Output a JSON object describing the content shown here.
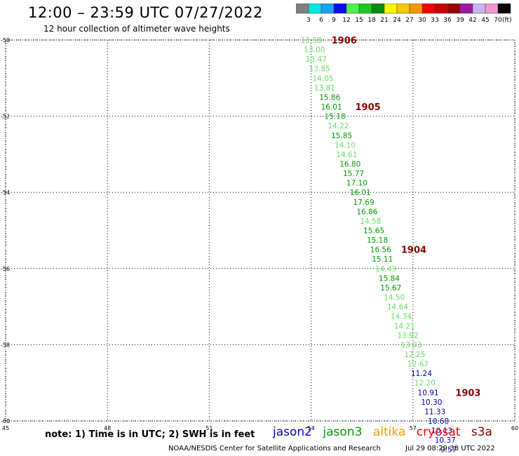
{
  "header": {
    "title": "12:00 – 23:59 UTC 07/27/2022",
    "subtitle": "12 hour collection of altimeter wave heights"
  },
  "colorbar": {
    "labels": [
      "3",
      "6",
      "9",
      "12",
      "15",
      "18",
      "21",
      "24",
      "27",
      "30",
      "33",
      "36",
      "39",
      "42",
      "45",
      "70"
    ],
    "unit": "(ft)",
    "colors": [
      "#808080",
      "#00e5e5",
      "#1aa0f0",
      "#0a0aee",
      "#4cf04c",
      "#1ec81e",
      "#0a8c0a",
      "#f5f500",
      "#f5c800",
      "#f59600",
      "#f00000",
      "#c80000",
      "#960000",
      "#9c1a9c",
      "#c8b4f0",
      "#f096d2",
      "#000000"
    ]
  },
  "map": {
    "lon_min": 45,
    "lon_max": 60,
    "lat_min": -60,
    "lat_max": -50,
    "x_ticks": [
      "45",
      "48",
      "51",
      "54",
      "57",
      "60"
    ],
    "y_ticks": [
      "-50",
      "-52",
      "-54",
      "-56",
      "-58",
      "-60"
    ],
    "gridlines": "dotted"
  },
  "chart_data": {
    "type": "scatter",
    "x_label": "longitude",
    "y_label": "latitude",
    "points": [
      {
        "lon": 54.0,
        "lat": -50.0,
        "swh": "13.38",
        "sat": "jason3"
      },
      {
        "lon": 54.1,
        "lat": -50.25,
        "swh": "13.00",
        "sat": "jason3"
      },
      {
        "lon": 54.15,
        "lat": -50.5,
        "swh": "13.47",
        "sat": "jason3"
      },
      {
        "lon": 54.25,
        "lat": -50.75,
        "swh": "13.85",
        "sat": "jason3"
      },
      {
        "lon": 54.35,
        "lat": -51.0,
        "swh": "14.05",
        "sat": "jason3"
      },
      {
        "lon": 54.4,
        "lat": -51.25,
        "swh": "13.81",
        "sat": "jason3"
      },
      {
        "lon": 54.55,
        "lat": -51.5,
        "swh": "15.86",
        "sat": "jason3"
      },
      {
        "lon": 54.6,
        "lat": -51.75,
        "swh": "16.01",
        "sat": "jason3"
      },
      {
        "lon": 54.7,
        "lat": -52.0,
        "swh": "15.18",
        "sat": "jason3"
      },
      {
        "lon": 54.8,
        "lat": -52.25,
        "swh": "14.22",
        "sat": "jason3"
      },
      {
        "lon": 54.9,
        "lat": -52.5,
        "swh": "15.85",
        "sat": "jason3"
      },
      {
        "lon": 55.0,
        "lat": -52.75,
        "swh": "14.10",
        "sat": "jason3"
      },
      {
        "lon": 55.05,
        "lat": -53.0,
        "swh": "14.61",
        "sat": "jason3"
      },
      {
        "lon": 55.15,
        "lat": -53.25,
        "swh": "16.80",
        "sat": "jason3"
      },
      {
        "lon": 55.25,
        "lat": -53.5,
        "swh": "15.77",
        "sat": "jason3"
      },
      {
        "lon": 55.35,
        "lat": -53.75,
        "swh": "17.10",
        "sat": "jason3"
      },
      {
        "lon": 55.45,
        "lat": -54.0,
        "swh": "16.01",
        "sat": "jason3"
      },
      {
        "lon": 55.55,
        "lat": -54.25,
        "swh": "17.69",
        "sat": "jason3"
      },
      {
        "lon": 55.65,
        "lat": -54.5,
        "swh": "16.86",
        "sat": "jason3"
      },
      {
        "lon": 55.75,
        "lat": -54.75,
        "swh": "14.58",
        "sat": "jason3"
      },
      {
        "lon": 55.85,
        "lat": -55.0,
        "swh": "15.65",
        "sat": "jason3"
      },
      {
        "lon": 55.95,
        "lat": -55.25,
        "swh": "15.18",
        "sat": "jason3"
      },
      {
        "lon": 56.05,
        "lat": -55.5,
        "swh": "16.56",
        "sat": "jason3"
      },
      {
        "lon": 56.1,
        "lat": -55.75,
        "swh": "15.11",
        "sat": "jason3"
      },
      {
        "lon": 56.2,
        "lat": -56.0,
        "swh": "14.43",
        "sat": "jason3"
      },
      {
        "lon": 56.3,
        "lat": -56.25,
        "swh": "15.84",
        "sat": "jason3"
      },
      {
        "lon": 56.35,
        "lat": -56.5,
        "swh": "15.67",
        "sat": "jason3"
      },
      {
        "lon": 56.45,
        "lat": -56.75,
        "swh": "14.50",
        "sat": "jason3"
      },
      {
        "lon": 56.55,
        "lat": -57.0,
        "swh": "14.64",
        "sat": "jason3"
      },
      {
        "lon": 56.65,
        "lat": -57.25,
        "swh": "14.34",
        "sat": "jason3"
      },
      {
        "lon": 56.75,
        "lat": -57.5,
        "swh": "14.21",
        "sat": "jason3"
      },
      {
        "lon": 56.85,
        "lat": -57.75,
        "swh": "13.92",
        "sat": "jason3"
      },
      {
        "lon": 56.95,
        "lat": -58.0,
        "swh": "13.93",
        "sat": "jason3"
      },
      {
        "lon": 57.05,
        "lat": -58.25,
        "swh": "12.25",
        "sat": "jason3"
      },
      {
        "lon": 57.15,
        "lat": -58.5,
        "swh": "12.67",
        "sat": "jason3"
      },
      {
        "lon": 57.25,
        "lat": -58.75,
        "swh": "11.24",
        "sat": "jason2"
      },
      {
        "lon": 57.35,
        "lat": -59.0,
        "swh": "12.20",
        "sat": "jason3"
      },
      {
        "lon": 57.45,
        "lat": -59.25,
        "swh": "10.91",
        "sat": "jason2"
      },
      {
        "lon": 57.55,
        "lat": -59.5,
        "swh": "10.30",
        "sat": "jason2"
      },
      {
        "lon": 57.65,
        "lat": -59.75,
        "swh": "11.33",
        "sat": "jason2"
      },
      {
        "lon": 57.75,
        "lat": -60.0,
        "swh": "10.60",
        "sat": "jason2"
      },
      {
        "lon": 57.85,
        "lat": -60.25,
        "swh": "10.13",
        "sat": "jason2"
      },
      {
        "lon": 57.95,
        "lat": -60.5,
        "swh": "10.37",
        "sat": "jason2"
      },
      {
        "lon": 58.05,
        "lat": -60.75,
        "swh": "9.57",
        "sat": "jason2"
      }
    ],
    "time_labels": [
      {
        "text": "1906",
        "lon": 54.6,
        "lat": -50.0
      },
      {
        "text": "1905",
        "lon": 55.3,
        "lat": -51.75
      },
      {
        "text": "1904",
        "lon": 56.65,
        "lat": -55.5
      },
      {
        "text": "1903",
        "lon": 58.25,
        "lat": -59.25
      }
    ]
  },
  "legend": {
    "note": "note: 1) Time is in UTC; 2) SWH is in feet",
    "satellites": [
      {
        "name": "jason2",
        "color": "#0000cc"
      },
      {
        "name": "jason3",
        "color": "#009900"
      },
      {
        "name": "altika",
        "color": "#ff9900"
      },
      {
        "name": "cryosat",
        "color": "#ee0000"
      },
      {
        "name": "s3a",
        "color": "#880000"
      }
    ]
  },
  "footer": {
    "credit": "NOAA/NESDIS Center for Satellite Applications and Research",
    "timestamp": "Jul 29 08:29:38 UTC 2022"
  },
  "colors": {
    "jason3_light": "#66e066",
    "jason3_dark": "#009900",
    "jason2": "#0000aa",
    "time_label": "#8b0000"
  }
}
